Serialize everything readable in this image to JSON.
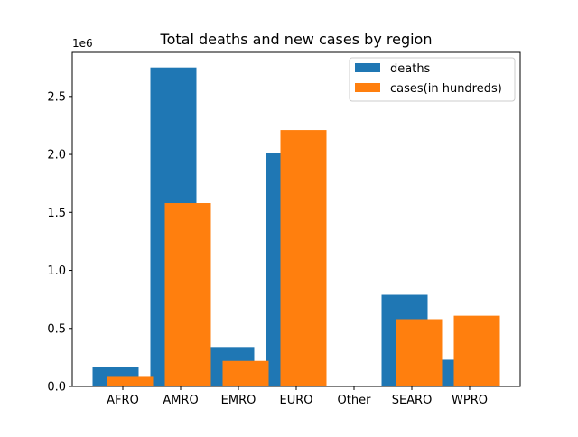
{
  "chart_data": {
    "type": "bar",
    "title": "Total deaths and new cases by region",
    "xlabel": "",
    "ylabel": "",
    "y_scale_label": "1e6",
    "categories": [
      "AFRO",
      "AMRO",
      "EMRO",
      "EURO",
      "Other",
      "SEARO",
      "WPRO"
    ],
    "ylim": [
      0,
      2.88
    ],
    "y_ticks": [
      0.0,
      0.5,
      1.0,
      1.5,
      2.0,
      2.5
    ],
    "y_tick_labels": [
      "0.0",
      "0.5",
      "1.0",
      "1.5",
      "2.0",
      "2.5"
    ],
    "grid": false,
    "legend_position": "top-right",
    "series": [
      {
        "name": "deaths",
        "color": "#1f77b4",
        "values": [
          0.17,
          2.75,
          0.34,
          2.01,
          0.0,
          0.79,
          0.23
        ]
      },
      {
        "name": "cases(in hundreds)",
        "color": "#ff7f0e",
        "values": [
          0.09,
          1.58,
          0.22,
          2.21,
          0.0,
          0.58,
          0.61
        ]
      }
    ]
  }
}
